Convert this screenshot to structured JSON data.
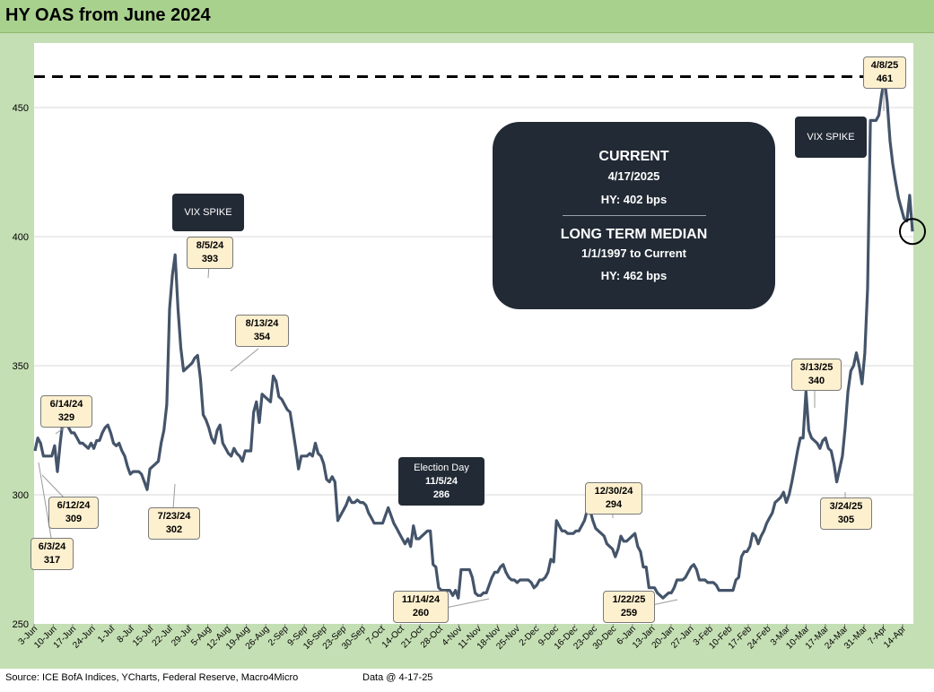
{
  "title": "HY OAS from June 2024",
  "source": "Source: ICE BofA Indices, YCharts, Federal Reserve, Macro4Micro",
  "data_as_of": "Data @ 4-17-25",
  "infobox": {
    "current_heading": "CURRENT",
    "current_date": "4/17/2025",
    "current_value": "HY:  402 bps",
    "median_heading": "LONG TERM MEDIAN",
    "median_range": "1/1/1997 to Current",
    "median_value": "HY: 462 bps"
  },
  "labels": {
    "vix1": "VIX SPIKE",
    "vix2": "VIX SPIKE",
    "election_title": "Election Day",
    "election_date": "11/5/24",
    "election_value": "286"
  },
  "callouts": [
    {
      "date": "6/3/24",
      "value": "317"
    },
    {
      "date": "6/12/24",
      "value": "309"
    },
    {
      "date": "6/14/24",
      "value": "329"
    },
    {
      "date": "7/23/24",
      "value": "302"
    },
    {
      "date": "8/5/24",
      "value": "393"
    },
    {
      "date": "8/13/24",
      "value": "354"
    },
    {
      "date": "11/14/24",
      "value": "260"
    },
    {
      "date": "12/30/24",
      "value": "294"
    },
    {
      "date": "1/22/25",
      "value": "259"
    },
    {
      "date": "3/13/25",
      "value": "340"
    },
    {
      "date": "3/24/25",
      "value": "305"
    },
    {
      "date": "4/8/25",
      "value": "461"
    }
  ],
  "colors": {
    "line": "#44546a",
    "median_line": "#000000",
    "grid": "#d9d9d9",
    "frame": "#c5dfb4"
  },
  "chart_data": {
    "type": "line",
    "title": "HY OAS from June 2024",
    "ylim": [
      250,
      475
    ],
    "yticks": [
      250,
      300,
      350,
      400,
      450
    ],
    "x_ticks": [
      "3-Jun",
      "10-Jun",
      "17-Jun",
      "24-Jun",
      "1-Jul",
      "8-Jul",
      "15-Jul",
      "22-Jul",
      "29-Jul",
      "5-Aug",
      "12-Aug",
      "19-Aug",
      "26-Aug",
      "2-Sep",
      "9-Sep",
      "16-Sep",
      "23-Sep",
      "30-Sep",
      "7-Oct",
      "14-Oct",
      "21-Oct",
      "28-Oct",
      "4-Nov",
      "11-Nov",
      "18-Nov",
      "25-Nov",
      "2-Dec",
      "9-Dec",
      "16-Dec",
      "23-Dec",
      "30-Dec",
      "6-Jan",
      "13-Jan",
      "20-Jan",
      "27-Jan",
      "3-Feb",
      "10-Feb",
      "17-Feb",
      "24-Feb",
      "3-Mar",
      "10-Mar",
      "17-Mar",
      "24-Mar",
      "31-Mar",
      "7-Apr",
      "14-Apr"
    ],
    "reference_line": {
      "label": "LONG TERM MEDIAN",
      "value": 462
    },
    "series": [
      {
        "values": [
          317,
          322,
          320,
          315,
          315,
          315,
          315,
          319,
          309,
          320,
          329,
          328,
          326,
          324,
          324,
          322,
          320,
          320,
          319,
          318,
          320,
          318,
          321,
          321,
          324,
          326,
          327,
          324,
          320,
          319,
          320,
          317,
          315,
          311,
          308,
          309,
          309,
          309,
          308,
          305,
          302,
          310,
          311,
          312,
          313,
          320,
          325,
          335,
          372,
          385,
          393,
          372,
          357,
          348,
          349,
          350,
          351,
          353,
          354,
          345,
          331,
          329,
          326,
          322,
          320,
          325,
          327,
          320,
          318,
          316,
          315,
          318,
          316,
          315,
          313,
          317,
          317,
          317,
          332,
          336,
          328,
          339,
          338,
          337,
          336,
          346,
          344,
          338,
          337,
          335,
          333,
          332,
          325,
          318,
          310,
          315,
          315,
          315,
          316,
          315,
          320,
          316,
          315,
          312,
          306,
          305,
          307,
          305,
          290,
          292,
          294,
          296,
          299,
          297,
          297,
          298,
          297,
          297,
          296,
          293,
          291,
          289,
          289,
          289,
          289,
          292,
          295,
          292,
          289,
          287,
          285,
          283,
          281,
          283,
          280,
          288,
          283,
          283,
          284,
          285,
          286,
          286,
          273,
          272,
          264,
          263,
          263,
          263,
          263,
          261,
          263,
          260,
          271,
          271,
          271,
          271,
          268,
          262,
          261,
          261,
          262,
          262,
          265,
          268,
          270,
          270,
          272,
          273,
          270,
          268,
          267,
          267,
          266,
          267,
          267,
          267,
          267,
          266,
          264,
          265,
          267,
          267,
          268,
          270,
          275,
          274,
          290,
          288,
          286,
          286,
          285,
          285,
          285,
          286,
          286,
          288,
          290,
          294,
          294,
          290,
          287,
          286,
          285,
          284,
          281,
          280,
          279,
          276,
          279,
          284,
          282,
          282,
          283,
          284,
          285,
          280,
          278,
          272,
          272,
          264,
          264,
          264,
          262,
          261,
          260,
          261,
          262,
          262,
          264,
          267,
          267,
          267,
          268,
          270,
          272,
          273,
          271,
          267,
          267,
          267,
          266,
          266,
          266,
          265,
          263,
          263,
          263,
          263,
          263,
          263,
          267,
          268,
          276,
          278,
          278,
          280,
          285,
          284,
          281,
          284,
          286,
          289,
          291,
          293,
          297,
          298,
          299,
          301,
          297,
          300,
          305,
          311,
          317,
          322,
          322,
          340,
          325,
          322,
          321,
          320,
          318,
          321,
          322,
          318,
          317,
          312,
          305,
          310,
          315,
          326,
          340,
          348,
          350,
          355,
          350,
          343,
          355,
          380,
          445,
          445,
          445,
          447,
          455,
          461,
          452,
          437,
          428,
          421,
          415,
          411,
          407,
          406,
          416,
          402
        ]
      }
    ]
  }
}
